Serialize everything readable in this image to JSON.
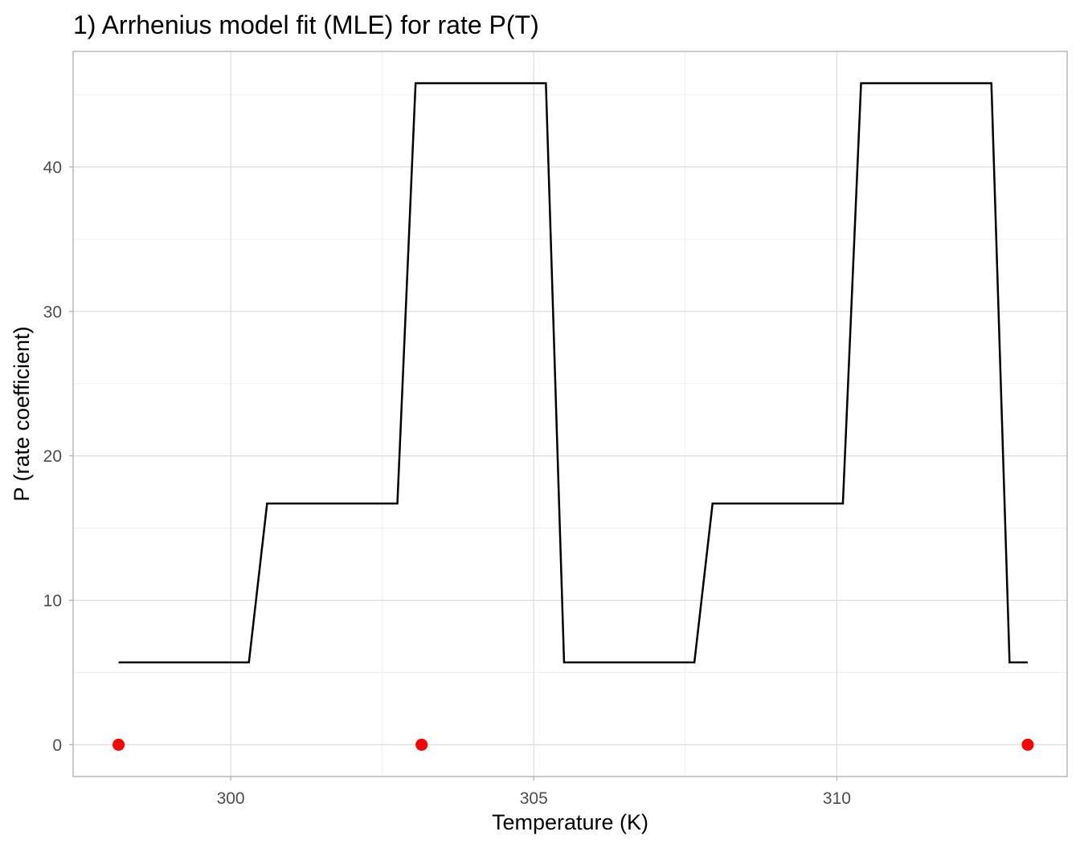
{
  "chart_data": {
    "type": "line",
    "title": "1) Arrhenius model fit (MLE) for rate P(T)",
    "xlabel": "Temperature (K)",
    "ylabel": "P (rate coefficient)",
    "xlim": [
      297.4,
      313.8
    ],
    "ylim": [
      -2.2,
      48.0
    ],
    "x_ticks": [
      300,
      305,
      310
    ],
    "x_minor_ticks": [
      302.5,
      307.5
    ],
    "y_ticks": [
      0,
      10,
      20,
      30,
      40
    ],
    "y_minor_ticks": [
      5,
      15,
      25,
      35,
      45
    ],
    "grid": true,
    "legend": "none",
    "series": [
      {
        "type": "line",
        "color": "#000000",
        "x": [
          298.15,
          300.3,
          300.6,
          302.75,
          303.05,
          305.2,
          305.5,
          307.65,
          307.95,
          310.1,
          310.4,
          312.55,
          312.85,
          313.15
        ],
        "y": [
          5.7,
          5.7,
          16.7,
          16.7,
          45.8,
          45.8,
          5.7,
          5.7,
          16.7,
          16.7,
          45.8,
          45.8,
          5.7,
          5.7
        ]
      },
      {
        "type": "scatter",
        "color": "#ff0000",
        "x": [
          298.15,
          303.15,
          313.15
        ],
        "y": [
          0,
          0,
          0
        ]
      }
    ]
  }
}
